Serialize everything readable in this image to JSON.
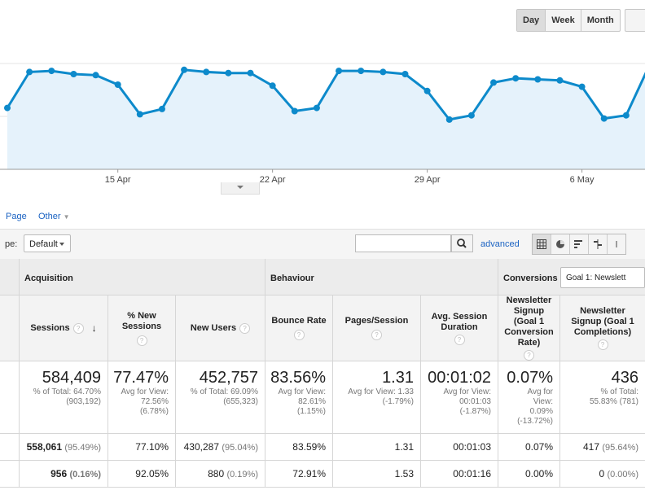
{
  "period_buttons": [
    "Day",
    "Week",
    "Month"
  ],
  "chart_data": {
    "type": "area",
    "x_ticks": [
      "15 Apr",
      "22 Apr",
      "29 Apr",
      "6 May"
    ],
    "values": [
      0.58,
      0.92,
      0.93,
      0.9,
      0.89,
      0.8,
      0.52,
      0.57,
      0.94,
      0.92,
      0.91,
      0.91,
      0.79,
      0.55,
      0.58,
      0.93,
      0.93,
      0.92,
      0.9,
      0.74,
      0.47,
      0.51,
      0.82,
      0.86,
      0.85,
      0.84,
      0.78,
      0.48,
      0.51,
      0.96
    ],
    "ylim": [
      0,
      1
    ],
    "grid": true,
    "line_color": "#0d8acb",
    "fill_color": "#e5f2fb"
  },
  "nav": {
    "page": "Page",
    "other": "Other"
  },
  "toolbar": {
    "type_label": "pe:",
    "default_label": "Default",
    "search_placeholder": "",
    "advanced": "advanced"
  },
  "table": {
    "groups": {
      "acquisition": "Acquisition",
      "behaviour": "Behaviour",
      "conversions": "Conversions",
      "goal_select": "Goal 1: Newslett"
    },
    "columns": {
      "sessions": "Sessions",
      "new_sessions": "% New Sessions",
      "new_users": "New Users",
      "bounce": "Bounce Rate",
      "pages": "Pages/Session",
      "duration": "Avg. Session Duration",
      "conv_rate": "Newsletter Signup (Goal 1 Conversion Rate)",
      "completions": "Newsletter Signup (Goal 1 Completions)"
    },
    "totals": {
      "sessions": "584,409",
      "sessions_sub1": "% of Total: 64.70%",
      "sessions_sub2": "(903,192)",
      "new_sessions": "77.47%",
      "new_sessions_sub1": "Avg for View:",
      "new_sessions_sub2": "72.56%",
      "new_sessions_sub3": "(6.78%)",
      "new_users": "452,757",
      "new_users_sub1": "% of Total: 69.09%",
      "new_users_sub2": "(655,323)",
      "bounce": "83.56%",
      "bounce_sub1": "Avg for View:",
      "bounce_sub2": "82.61%",
      "bounce_sub3": "(1.15%)",
      "pages": "1.31",
      "pages_sub1": "Avg for View: 1.33",
      "pages_sub2": "(-1.79%)",
      "duration": "00:01:02",
      "duration_sub1": "Avg for View:",
      "duration_sub2": "00:01:03",
      "duration_sub3": "(-1.87%)",
      "conv_rate": "0.07%",
      "conv_rate_sub1": "Avg for",
      "conv_rate_sub2": "View:",
      "conv_rate_sub3": "0.09%",
      "conv_rate_sub4": "(-13.72%)",
      "completions": "436",
      "completions_sub1": "% of Total:",
      "completions_sub2": "55.83% (781)"
    },
    "rows": [
      {
        "sessions": "558,061",
        "sessions_pct": "(95.49%)",
        "new_sessions": "77.10%",
        "new_users": "430,287",
        "new_users_pct": "(95.04%)",
        "bounce": "83.59%",
        "pages": "1.31",
        "duration": "00:01:03",
        "conv_rate": "0.07%",
        "completions": "417",
        "completions_pct": "(95.64%)"
      },
      {
        "sessions": "956",
        "sessions_pct": "(0.16%)",
        "new_sessions": "92.05%",
        "new_users": "880",
        "new_users_pct": "(0.19%)",
        "bounce": "72.91%",
        "pages": "1.53",
        "duration": "00:01:16",
        "conv_rate": "0.00%",
        "completions": "0",
        "completions_pct": "(0.00%)"
      }
    ]
  }
}
